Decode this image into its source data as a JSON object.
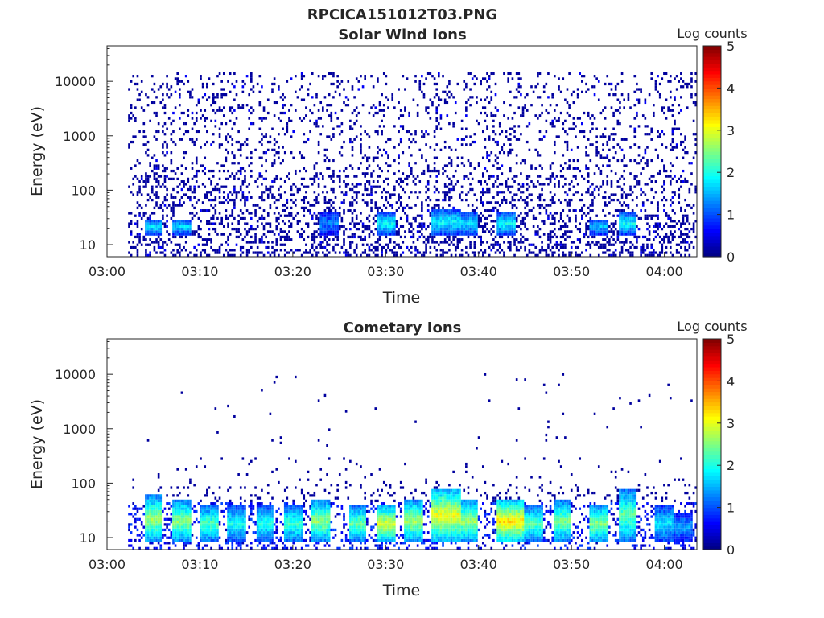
{
  "figure": {
    "title": "RPCICA151012T03.PNG"
  },
  "colormap": [
    "#00007f",
    "#0000ff",
    "#007fff",
    "#00ffff",
    "#7fff7f",
    "#ffff00",
    "#ff7f00",
    "#ff0000",
    "#7f0000"
  ],
  "chart_data": [
    {
      "type": "heatmap",
      "title": "Solar Wind Ions",
      "xlabel": "Time",
      "ylabel": "Energy (eV)",
      "xticks": [
        "03:00",
        "03:10",
        "03:20",
        "03:30",
        "03:40",
        "03:50",
        "04:00"
      ],
      "xlim_minutes": [
        0,
        63.5
      ],
      "data_start_minute": 2.3,
      "yscale": "log",
      "yticks": [
        10,
        100,
        1000,
        10000
      ],
      "ytick_labels": [
        "10",
        "100",
        "1000",
        "10000"
      ],
      "ylim": [
        6,
        45000
      ],
      "colorbar": {
        "label": "Log counts",
        "min": 0,
        "max": 5,
        "ticks": [
          "0",
          "1",
          "2",
          "3",
          "4",
          "5"
        ]
      },
      "low_energy_peak_intervals": [
        {
          "start": "03:04",
          "end": "03:05",
          "energy_eV": [
            15,
            30
          ],
          "log_counts": 1.8
        },
        {
          "start": "03:07",
          "end": "03:08",
          "energy_eV": [
            15,
            30
          ],
          "log_counts": 1.7
        },
        {
          "start": "03:23",
          "end": "03:24",
          "energy_eV": [
            15,
            40
          ],
          "log_counts": 1.3
        },
        {
          "start": "03:29",
          "end": "03:30",
          "energy_eV": [
            15,
            40
          ],
          "log_counts": 1.9
        },
        {
          "start": "03:35",
          "end": "03:37",
          "energy_eV": [
            15,
            45
          ],
          "log_counts": 1.9
        },
        {
          "start": "03:38",
          "end": "03:39",
          "energy_eV": [
            15,
            40
          ],
          "log_counts": 1.8
        },
        {
          "start": "03:42",
          "end": "03:43",
          "energy_eV": [
            15,
            40
          ],
          "log_counts": 1.9
        },
        {
          "start": "03:52",
          "end": "03:53",
          "energy_eV": [
            15,
            30
          ],
          "log_counts": 1.6
        },
        {
          "start": "03:55",
          "end": "03:56",
          "energy_eV": [
            15,
            40
          ],
          "log_counts": 1.9
        }
      ]
    },
    {
      "type": "heatmap",
      "title": "Cometary Ions",
      "xlabel": "Time",
      "ylabel": "Energy (eV)",
      "xticks": [
        "03:00",
        "03:10",
        "03:20",
        "03:30",
        "03:40",
        "03:50",
        "04:00"
      ],
      "xlim_minutes": [
        0,
        63.5
      ],
      "data_start_minute": 2.3,
      "yscale": "log",
      "yticks": [
        10,
        100,
        1000,
        10000
      ],
      "ytick_labels": [
        "10",
        "100",
        "1000",
        "10000"
      ],
      "ylim": [
        6,
        45000
      ],
      "colorbar": {
        "label": "Log counts",
        "min": 0,
        "max": 5,
        "ticks": [
          "0",
          "1",
          "2",
          "3",
          "4",
          "5"
        ]
      },
      "low_energy_peak_intervals": [
        {
          "start": "03:04",
          "end": "03:05",
          "energy_eV": [
            8,
            60
          ],
          "log_counts": 2.7
        },
        {
          "start": "03:07",
          "end": "03:08",
          "energy_eV": [
            8,
            50
          ],
          "log_counts": 2.6
        },
        {
          "start": "03:10",
          "end": "03:11",
          "energy_eV": [
            8,
            40
          ],
          "log_counts": 2.3
        },
        {
          "start": "03:13",
          "end": "03:14",
          "energy_eV": [
            8,
            40
          ],
          "log_counts": 2.0
        },
        {
          "start": "03:16",
          "end": "03:17",
          "energy_eV": [
            8,
            40
          ],
          "log_counts": 2.0
        },
        {
          "start": "03:19",
          "end": "03:20",
          "energy_eV": [
            8,
            40
          ],
          "log_counts": 2.2
        },
        {
          "start": "03:22",
          "end": "03:23",
          "energy_eV": [
            8,
            50
          ],
          "log_counts": 2.6
        },
        {
          "start": "03:26",
          "end": "03:27",
          "energy_eV": [
            8,
            40
          ],
          "log_counts": 2.4
        },
        {
          "start": "03:29",
          "end": "03:30",
          "energy_eV": [
            8,
            40
          ],
          "log_counts": 3.0
        },
        {
          "start": "03:32",
          "end": "03:33",
          "energy_eV": [
            8,
            50
          ],
          "log_counts": 2.7
        },
        {
          "start": "03:35",
          "end": "03:37",
          "energy_eV": [
            8,
            80
          ],
          "log_counts": 3.1
        },
        {
          "start": "03:38",
          "end": "03:39",
          "energy_eV": [
            8,
            50
          ],
          "log_counts": 2.7
        },
        {
          "start": "03:42",
          "end": "03:44",
          "energy_eV": [
            8,
            50
          ],
          "log_counts": 3.3
        },
        {
          "start": "03:45",
          "end": "03:46",
          "energy_eV": [
            8,
            40
          ],
          "log_counts": 2.3
        },
        {
          "start": "03:48",
          "end": "03:49",
          "energy_eV": [
            8,
            50
          ],
          "log_counts": 2.5
        },
        {
          "start": "03:52",
          "end": "03:53",
          "energy_eV": [
            8,
            40
          ],
          "log_counts": 2.6
        },
        {
          "start": "03:55",
          "end": "03:56",
          "energy_eV": [
            8,
            80
          ],
          "log_counts": 2.4
        },
        {
          "start": "03:59",
          "end": "04:00",
          "energy_eV": [
            8,
            40
          ],
          "log_counts": 1.8
        },
        {
          "start": "04:01",
          "end": "04:02",
          "energy_eV": [
            8,
            30
          ],
          "log_counts": 1.4
        }
      ]
    }
  ]
}
